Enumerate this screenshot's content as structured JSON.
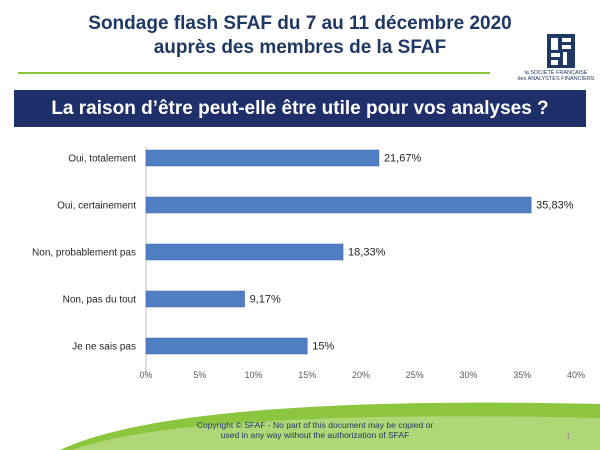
{
  "header": {
    "title_line1": "Sondage flash SFAF du 7 au 11 décembre 2020",
    "title_line2": "auprès des membres de la SFAF",
    "logo_text_line1": "la SOCIÉTÉ FRANÇAISE",
    "logo_text_line2": "des ANALYSTES FINANCIERS"
  },
  "banner": {
    "text": "La raison d’être peut-elle être utile pour vos analyses ?"
  },
  "chart_data": {
    "type": "bar",
    "orientation": "horizontal",
    "categories": [
      "Oui, totalement",
      "Oui, certainement",
      "Non, probablement pas",
      "Non, pas du tout",
      "Je ne sais pas"
    ],
    "values": [
      21.67,
      35.83,
      18.33,
      9.17,
      15
    ],
    "data_labels": [
      "21,67%",
      "35,83%",
      "18,33%",
      "9,17%",
      "15%"
    ],
    "xlim": [
      0,
      40
    ],
    "x_ticks": [
      0,
      5,
      10,
      15,
      20,
      25,
      30,
      35,
      40
    ],
    "x_tick_labels": [
      "0%",
      "5%",
      "10%",
      "15%",
      "20%",
      "25%",
      "30%",
      "35%",
      "40%"
    ],
    "bar_color": "#4f7fc2",
    "grid": false
  },
  "footer": {
    "copyright_line1": "Copyright © SFAF - No part of this document may be copied or",
    "copyright_line2": "used in any way without the authorization of SFAF",
    "page_number": "1"
  },
  "colors": {
    "title": "#1f3864",
    "banner": "#1f2f6a",
    "accent_green": "#8cc63f"
  }
}
